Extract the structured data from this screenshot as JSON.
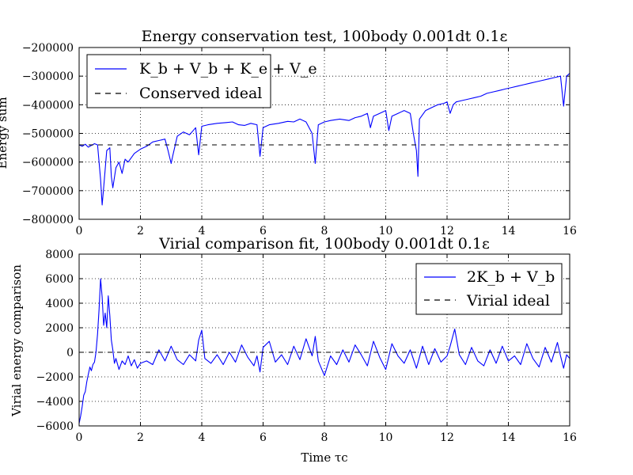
{
  "chart_data": [
    {
      "type": "line",
      "title": "Energy conservation test, 100body 0.001dt 0.1ε",
      "xlabel": "",
      "ylabel": "Energy sum",
      "xlim": [
        0,
        16
      ],
      "ylim": [
        -800000,
        -200000
      ],
      "xticks": [
        0,
        2,
        4,
        6,
        8,
        10,
        12,
        14,
        16
      ],
      "yticks": [
        -800000,
        -700000,
        -600000,
        -500000,
        -400000,
        -300000,
        -200000
      ],
      "xtick_labels": [
        "0",
        "2",
        "4",
        "6",
        "8",
        "10",
        "12",
        "14",
        "16"
      ],
      "ytick_labels": [
        "−800000",
        "−700000",
        "−600000",
        "−500000",
        "−400000",
        "−300000",
        "−200000"
      ],
      "grid": true,
      "legend_position": "top-left",
      "series": [
        {
          "name": "K_b + V_b + K_e + V_e",
          "color": "#0000ff",
          "style": "solid",
          "points": [
            [
              0,
              -540000
            ],
            [
              0.1,
              -545000
            ],
            [
              0.2,
              -538000
            ],
            [
              0.3,
              -548000
            ],
            [
              0.4,
              -542000
            ],
            [
              0.5,
              -536000
            ],
            [
              0.6,
              -540000
            ],
            [
              0.7,
              -660000
            ],
            [
              0.75,
              -750000
            ],
            [
              0.8,
              -690000
            ],
            [
              0.9,
              -560000
            ],
            [
              1.0,
              -550000
            ],
            [
              1.05,
              -650000
            ],
            [
              1.1,
              -690000
            ],
            [
              1.2,
              -620000
            ],
            [
              1.3,
              -600000
            ],
            [
              1.4,
              -640000
            ],
            [
              1.5,
              -590000
            ],
            [
              1.6,
              -600000
            ],
            [
              1.8,
              -570000
            ],
            [
              2.0,
              -555000
            ],
            [
              2.2,
              -545000
            ],
            [
              2.4,
              -530000
            ],
            [
              2.6,
              -525000
            ],
            [
              2.8,
              -520000
            ],
            [
              2.9,
              -560000
            ],
            [
              3.0,
              -605000
            ],
            [
              3.05,
              -580000
            ],
            [
              3.2,
              -510000
            ],
            [
              3.4,
              -495000
            ],
            [
              3.6,
              -505000
            ],
            [
              3.8,
              -480000
            ],
            [
              3.9,
              -575000
            ],
            [
              4.0,
              -475000
            ],
            [
              4.2,
              -470000
            ],
            [
              4.5,
              -465000
            ],
            [
              4.8,
              -462000
            ],
            [
              5.0,
              -460000
            ],
            [
              5.2,
              -470000
            ],
            [
              5.4,
              -472000
            ],
            [
              5.6,
              -465000
            ],
            [
              5.8,
              -470000
            ],
            [
              5.9,
              -580000
            ],
            [
              6.0,
              -480000
            ],
            [
              6.2,
              -470000
            ],
            [
              6.5,
              -465000
            ],
            [
              6.8,
              -458000
            ],
            [
              7.0,
              -460000
            ],
            [
              7.2,
              -450000
            ],
            [
              7.4,
              -460000
            ],
            [
              7.6,
              -500000
            ],
            [
              7.7,
              -605000
            ],
            [
              7.8,
              -470000
            ],
            [
              8.0,
              -460000
            ],
            [
              8.2,
              -455000
            ],
            [
              8.5,
              -450000
            ],
            [
              8.8,
              -455000
            ],
            [
              9.0,
              -445000
            ],
            [
              9.2,
              -440000
            ],
            [
              9.4,
              -430000
            ],
            [
              9.5,
              -480000
            ],
            [
              9.6,
              -440000
            ],
            [
              9.8,
              -430000
            ],
            [
              10.0,
              -420000
            ],
            [
              10.1,
              -490000
            ],
            [
              10.2,
              -440000
            ],
            [
              10.4,
              -430000
            ],
            [
              10.6,
              -420000
            ],
            [
              10.8,
              -430000
            ],
            [
              10.9,
              -500000
            ],
            [
              11.0,
              -560000
            ],
            [
              11.05,
              -650000
            ],
            [
              11.1,
              -450000
            ],
            [
              11.3,
              -420000
            ],
            [
              11.5,
              -410000
            ],
            [
              11.7,
              -400000
            ],
            [
              11.9,
              -395000
            ],
            [
              12.0,
              -390000
            ],
            [
              12.1,
              -430000
            ],
            [
              12.2,
              -400000
            ],
            [
              12.3,
              -390000
            ],
            [
              12.5,
              -385000
            ],
            [
              12.7,
              -380000
            ],
            [
              12.9,
              -375000
            ],
            [
              13.1,
              -370000
            ],
            [
              13.3,
              -360000
            ],
            [
              13.5,
              -355000
            ],
            [
              13.7,
              -350000
            ],
            [
              13.9,
              -345000
            ],
            [
              14.1,
              -340000
            ],
            [
              14.3,
              -335000
            ],
            [
              14.5,
              -330000
            ],
            [
              14.7,
              -325000
            ],
            [
              14.9,
              -320000
            ],
            [
              15.1,
              -315000
            ],
            [
              15.3,
              -310000
            ],
            [
              15.5,
              -305000
            ],
            [
              15.7,
              -300000
            ],
            [
              15.8,
              -405000
            ],
            [
              15.9,
              -300000
            ],
            [
              16.0,
              -290000
            ]
          ]
        },
        {
          "name": "Conserved ideal",
          "color": "#000000",
          "style": "dashed",
          "points": [
            [
              0,
              -540000
            ],
            [
              16,
              -540000
            ]
          ]
        }
      ]
    },
    {
      "type": "line",
      "title": "Virial comparison fit, 100body 0.001dt 0.1ε",
      "xlabel": "Time τc",
      "ylabel": "Virial energy comparison",
      "xlim": [
        0,
        16
      ],
      "ylim": [
        -6000,
        8000
      ],
      "xticks": [
        0,
        2,
        4,
        6,
        8,
        10,
        12,
        14,
        16
      ],
      "yticks": [
        -6000,
        -4000,
        -2000,
        0,
        2000,
        4000,
        6000,
        8000
      ],
      "xtick_labels": [
        "0",
        "2",
        "4",
        "6",
        "8",
        "10",
        "12",
        "14",
        "16"
      ],
      "ytick_labels": [
        "−6000",
        "−4000",
        "−2000",
        "0",
        "2000",
        "4000",
        "6000",
        "8000"
      ],
      "grid": true,
      "legend_position": "top-right",
      "series": [
        {
          "name": "2K_b + V_b",
          "color": "#0000ff",
          "style": "solid",
          "points": [
            [
              0,
              -5800
            ],
            [
              0.05,
              -5200
            ],
            [
              0.1,
              -4400
            ],
            [
              0.15,
              -3500
            ],
            [
              0.2,
              -3200
            ],
            [
              0.25,
              -2400
            ],
            [
              0.3,
              -1800
            ],
            [
              0.35,
              -1200
            ],
            [
              0.4,
              -1500
            ],
            [
              0.45,
              -1000
            ],
            [
              0.5,
              -800
            ],
            [
              0.55,
              0
            ],
            [
              0.6,
              1500
            ],
            [
              0.65,
              3500
            ],
            [
              0.7,
              6000
            ],
            [
              0.75,
              4500
            ],
            [
              0.8,
              2200
            ],
            [
              0.85,
              3200
            ],
            [
              0.9,
              2000
            ],
            [
              0.95,
              4600
            ],
            [
              1.0,
              3000
            ],
            [
              1.05,
              1000
            ],
            [
              1.1,
              200
            ],
            [
              1.15,
              -900
            ],
            [
              1.2,
              -500
            ],
            [
              1.3,
              -1400
            ],
            [
              1.4,
              -700
            ],
            [
              1.5,
              -1000
            ],
            [
              1.6,
              -300
            ],
            [
              1.7,
              -1100
            ],
            [
              1.8,
              -600
            ],
            [
              1.9,
              -1300
            ],
            [
              2.0,
              -900
            ],
            [
              2.2,
              -700
            ],
            [
              2.4,
              -1000
            ],
            [
              2.6,
              200
            ],
            [
              2.8,
              -700
            ],
            [
              3.0,
              500
            ],
            [
              3.2,
              -600
            ],
            [
              3.4,
              -1000
            ],
            [
              3.6,
              -200
            ],
            [
              3.8,
              -700
            ],
            [
              3.9,
              1000
            ],
            [
              4.0,
              1800
            ],
            [
              4.1,
              -500
            ],
            [
              4.3,
              -900
            ],
            [
              4.5,
              -200
            ],
            [
              4.7,
              -1000
            ],
            [
              4.9,
              0
            ],
            [
              5.1,
              -800
            ],
            [
              5.3,
              600
            ],
            [
              5.5,
              -400
            ],
            [
              5.7,
              -1100
            ],
            [
              5.8,
              -300
            ],
            [
              5.9,
              -1600
            ],
            [
              6.0,
              400
            ],
            [
              6.2,
              900
            ],
            [
              6.4,
              -800
            ],
            [
              6.6,
              -200
            ],
            [
              6.8,
              -1000
            ],
            [
              7.0,
              500
            ],
            [
              7.2,
              -600
            ],
            [
              7.4,
              1100
            ],
            [
              7.6,
              -300
            ],
            [
              7.7,
              1300
            ],
            [
              7.8,
              -700
            ],
            [
              8.0,
              -1900
            ],
            [
              8.2,
              -300
            ],
            [
              8.4,
              -1000
            ],
            [
              8.6,
              200
            ],
            [
              8.8,
              -800
            ],
            [
              9.0,
              600
            ],
            [
              9.2,
              -200
            ],
            [
              9.4,
              -1100
            ],
            [
              9.6,
              900
            ],
            [
              9.8,
              -400
            ],
            [
              10.0,
              -1400
            ],
            [
              10.2,
              700
            ],
            [
              10.4,
              -300
            ],
            [
              10.6,
              -900
            ],
            [
              10.8,
              200
            ],
            [
              11.0,
              -1300
            ],
            [
              11.2,
              500
            ],
            [
              11.4,
              -1000
            ],
            [
              11.6,
              300
            ],
            [
              11.8,
              -800
            ],
            [
              12.0,
              -300
            ],
            [
              12.1,
              500
            ],
            [
              12.25,
              1900
            ],
            [
              12.4,
              -200
            ],
            [
              12.6,
              -1000
            ],
            [
              12.8,
              400
            ],
            [
              13.0,
              -700
            ],
            [
              13.2,
              -1100
            ],
            [
              13.4,
              200
            ],
            [
              13.6,
              -900
            ],
            [
              13.8,
              500
            ],
            [
              14.0,
              -700
            ],
            [
              14.2,
              -300
            ],
            [
              14.4,
              -1000
            ],
            [
              14.6,
              700
            ],
            [
              14.8,
              -500
            ],
            [
              15.0,
              -1200
            ],
            [
              15.2,
              400
            ],
            [
              15.4,
              -800
            ],
            [
              15.6,
              800
            ],
            [
              15.7,
              -300
            ],
            [
              15.8,
              -1300
            ],
            [
              15.9,
              -200
            ],
            [
              16.0,
              -500
            ]
          ]
        },
        {
          "name": "Virial ideal",
          "color": "#000000",
          "style": "dashed",
          "points": [
            [
              0,
              0
            ],
            [
              16,
              0
            ]
          ]
        }
      ]
    }
  ]
}
